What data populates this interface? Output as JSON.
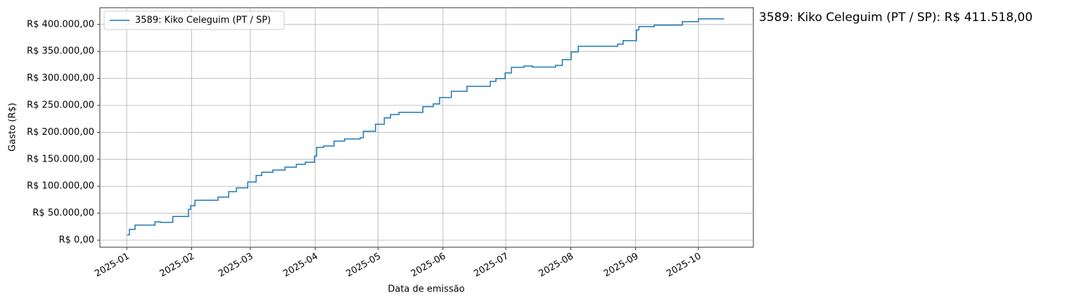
{
  "chart_data": {
    "type": "line",
    "ylabel": "Gasto (R$)",
    "xlabel": "Data de emissão",
    "annotation": "3589: Kiko Celeguim (PT / SP): R$ 411.518,00",
    "drawstyle": "steps-post",
    "grid": true,
    "legend": "upper left",
    "xlim": [
      -12.8,
      299.2
    ],
    "xticks": [
      {
        "value": 0,
        "label": "2025-01"
      },
      {
        "value": 31,
        "label": "2025-02"
      },
      {
        "value": 59,
        "label": "2025-03"
      },
      {
        "value": 90,
        "label": "2025-04"
      },
      {
        "value": 120,
        "label": "2025-05"
      },
      {
        "value": 151,
        "label": "2025-06"
      },
      {
        "value": 181,
        "label": "2025-07"
      },
      {
        "value": 212,
        "label": "2025-08"
      },
      {
        "value": 243,
        "label": "2025-09"
      },
      {
        "value": 273,
        "label": "2025-10"
      }
    ],
    "ylim": [
      -13000,
      431000
    ],
    "yticks": [
      {
        "value": 0,
        "label": "R$ 0,00"
      },
      {
        "value": 50000,
        "label": "R$ 50.000,00"
      },
      {
        "value": 100000,
        "label": "R$ 100.000,00"
      },
      {
        "value": 150000,
        "label": "R$ 150.000,00"
      },
      {
        "value": 200000,
        "label": "R$ 200.000,00"
      },
      {
        "value": 250000,
        "label": "R$ 250.000,00"
      },
      {
        "value": 300000,
        "label": "R$ 300.000,00"
      },
      {
        "value": 350000,
        "label": "R$ 350.000,00"
      },
      {
        "value": 400000,
        "label": "R$ 400.000,00"
      }
    ],
    "series": [
      {
        "name": "3589: Kiko Celeguim (PT / SP)",
        "color": "#1f77b4",
        "x": [
          0.3,
          1.3,
          4,
          13.5,
          16,
          22,
          29.5,
          30.5,
          32.6,
          43.6,
          48.7,
          52.4,
          57.8,
          61.8,
          64.5,
          69.8,
          75.6,
          81,
          85.3,
          89.7,
          90.7,
          94,
          99,
          104,
          111.5,
          113,
          118.8,
          123,
          126,
          130,
          141.4,
          146.4,
          149.4,
          155,
          162.5,
          173.6,
          176.3,
          180.7,
          183.7,
          189.7,
          193.7,
          204.8,
          208,
          212.2,
          215.6,
          234.4,
          237,
          243.4,
          244.5,
          251.9,
          265.3,
          273,
          285
        ],
        "values": [
          10000,
          20000,
          28000,
          34000,
          33000,
          44000,
          57000,
          64000,
          74000,
          80000,
          90000,
          97000,
          108000,
          120000,
          126000,
          130000,
          135500,
          140700,
          144600,
          156000,
          172000,
          174600,
          183700,
          187600,
          190000,
          202000,
          215000,
          226700,
          233000,
          237000,
          247500,
          252800,
          264500,
          276000,
          285300,
          294500,
          299700,
          310000,
          320500,
          323000,
          321000,
          324000,
          334800,
          349200,
          359600,
          363500,
          370000,
          389600,
          396000,
          398700,
          405200,
          410400,
          411518
        ]
      }
    ]
  }
}
